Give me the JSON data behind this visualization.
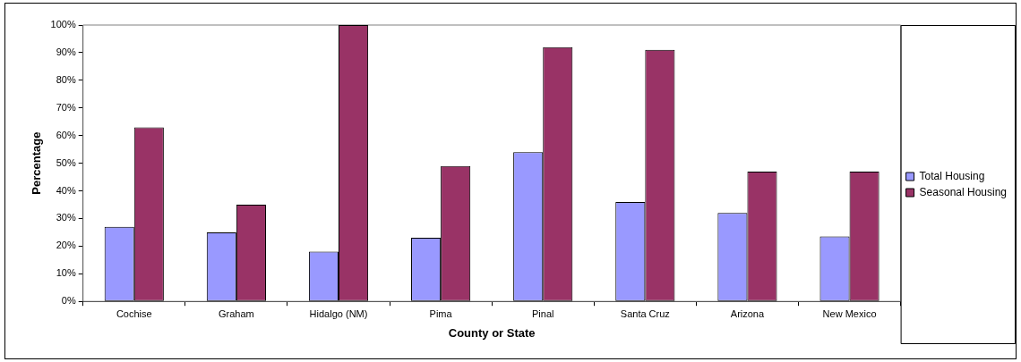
{
  "chart_data": {
    "type": "bar",
    "xlabel": "County or State",
    "ylabel": "Percentage",
    "categories": [
      "Cochise",
      "Graham",
      "Hidalgo (NM)",
      "Pima",
      "Pinal",
      "Santa Cruz",
      "Arizona",
      "New Mexico"
    ],
    "series": [
      {
        "name": "Total Housing",
        "color": "#9999ff",
        "values": [
          27,
          25,
          18,
          23,
          54,
          36,
          32,
          23.5
        ]
      },
      {
        "name": "Seasonal Housing",
        "color": "#993366",
        "values": [
          63,
          35,
          100,
          49,
          92,
          91,
          47,
          47
        ]
      }
    ],
    "ylim": [
      0,
      100
    ],
    "yticks": [
      {
        "value": 0,
        "label": "0%"
      },
      {
        "value": 10,
        "label": "10%"
      },
      {
        "value": 20,
        "label": "20%"
      },
      {
        "value": 30,
        "label": "30%"
      },
      {
        "value": 40,
        "label": "40%"
      },
      {
        "value": 50,
        "label": "50%"
      },
      {
        "value": 60,
        "label": "60%"
      },
      {
        "value": 70,
        "label": "70%"
      },
      {
        "value": 80,
        "label": "80%"
      },
      {
        "value": 90,
        "label": "90%"
      },
      {
        "value": 100,
        "label": "100%"
      }
    ],
    "grid": false,
    "legend": "right"
  }
}
